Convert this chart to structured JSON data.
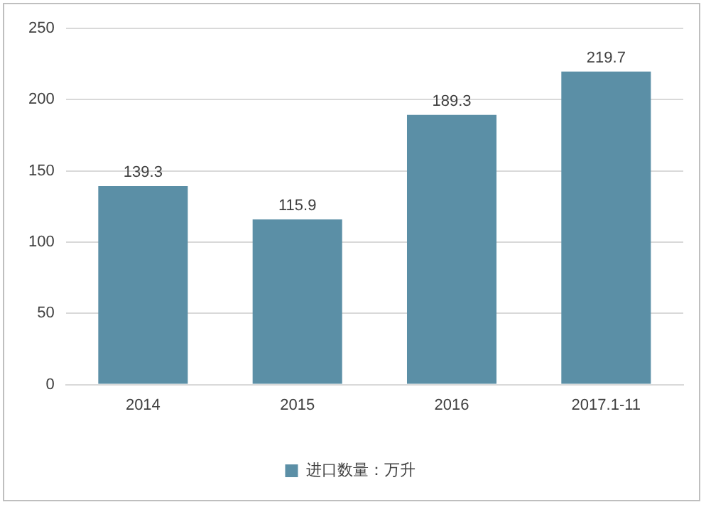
{
  "chart_data": {
    "type": "bar",
    "categories": [
      "2014",
      "2015",
      "2016",
      "2017.1-11"
    ],
    "series": [
      {
        "name": "进口数量：万升",
        "color": "#5b8fa6",
        "values": [
          139.3,
          115.9,
          189.3,
          219.7
        ]
      }
    ],
    "ylim": [
      0,
      250
    ],
    "yticks": [
      0,
      50,
      100,
      150,
      200,
      250
    ],
    "grid": "y",
    "legend": "bottom",
    "data_labels": true
  }
}
